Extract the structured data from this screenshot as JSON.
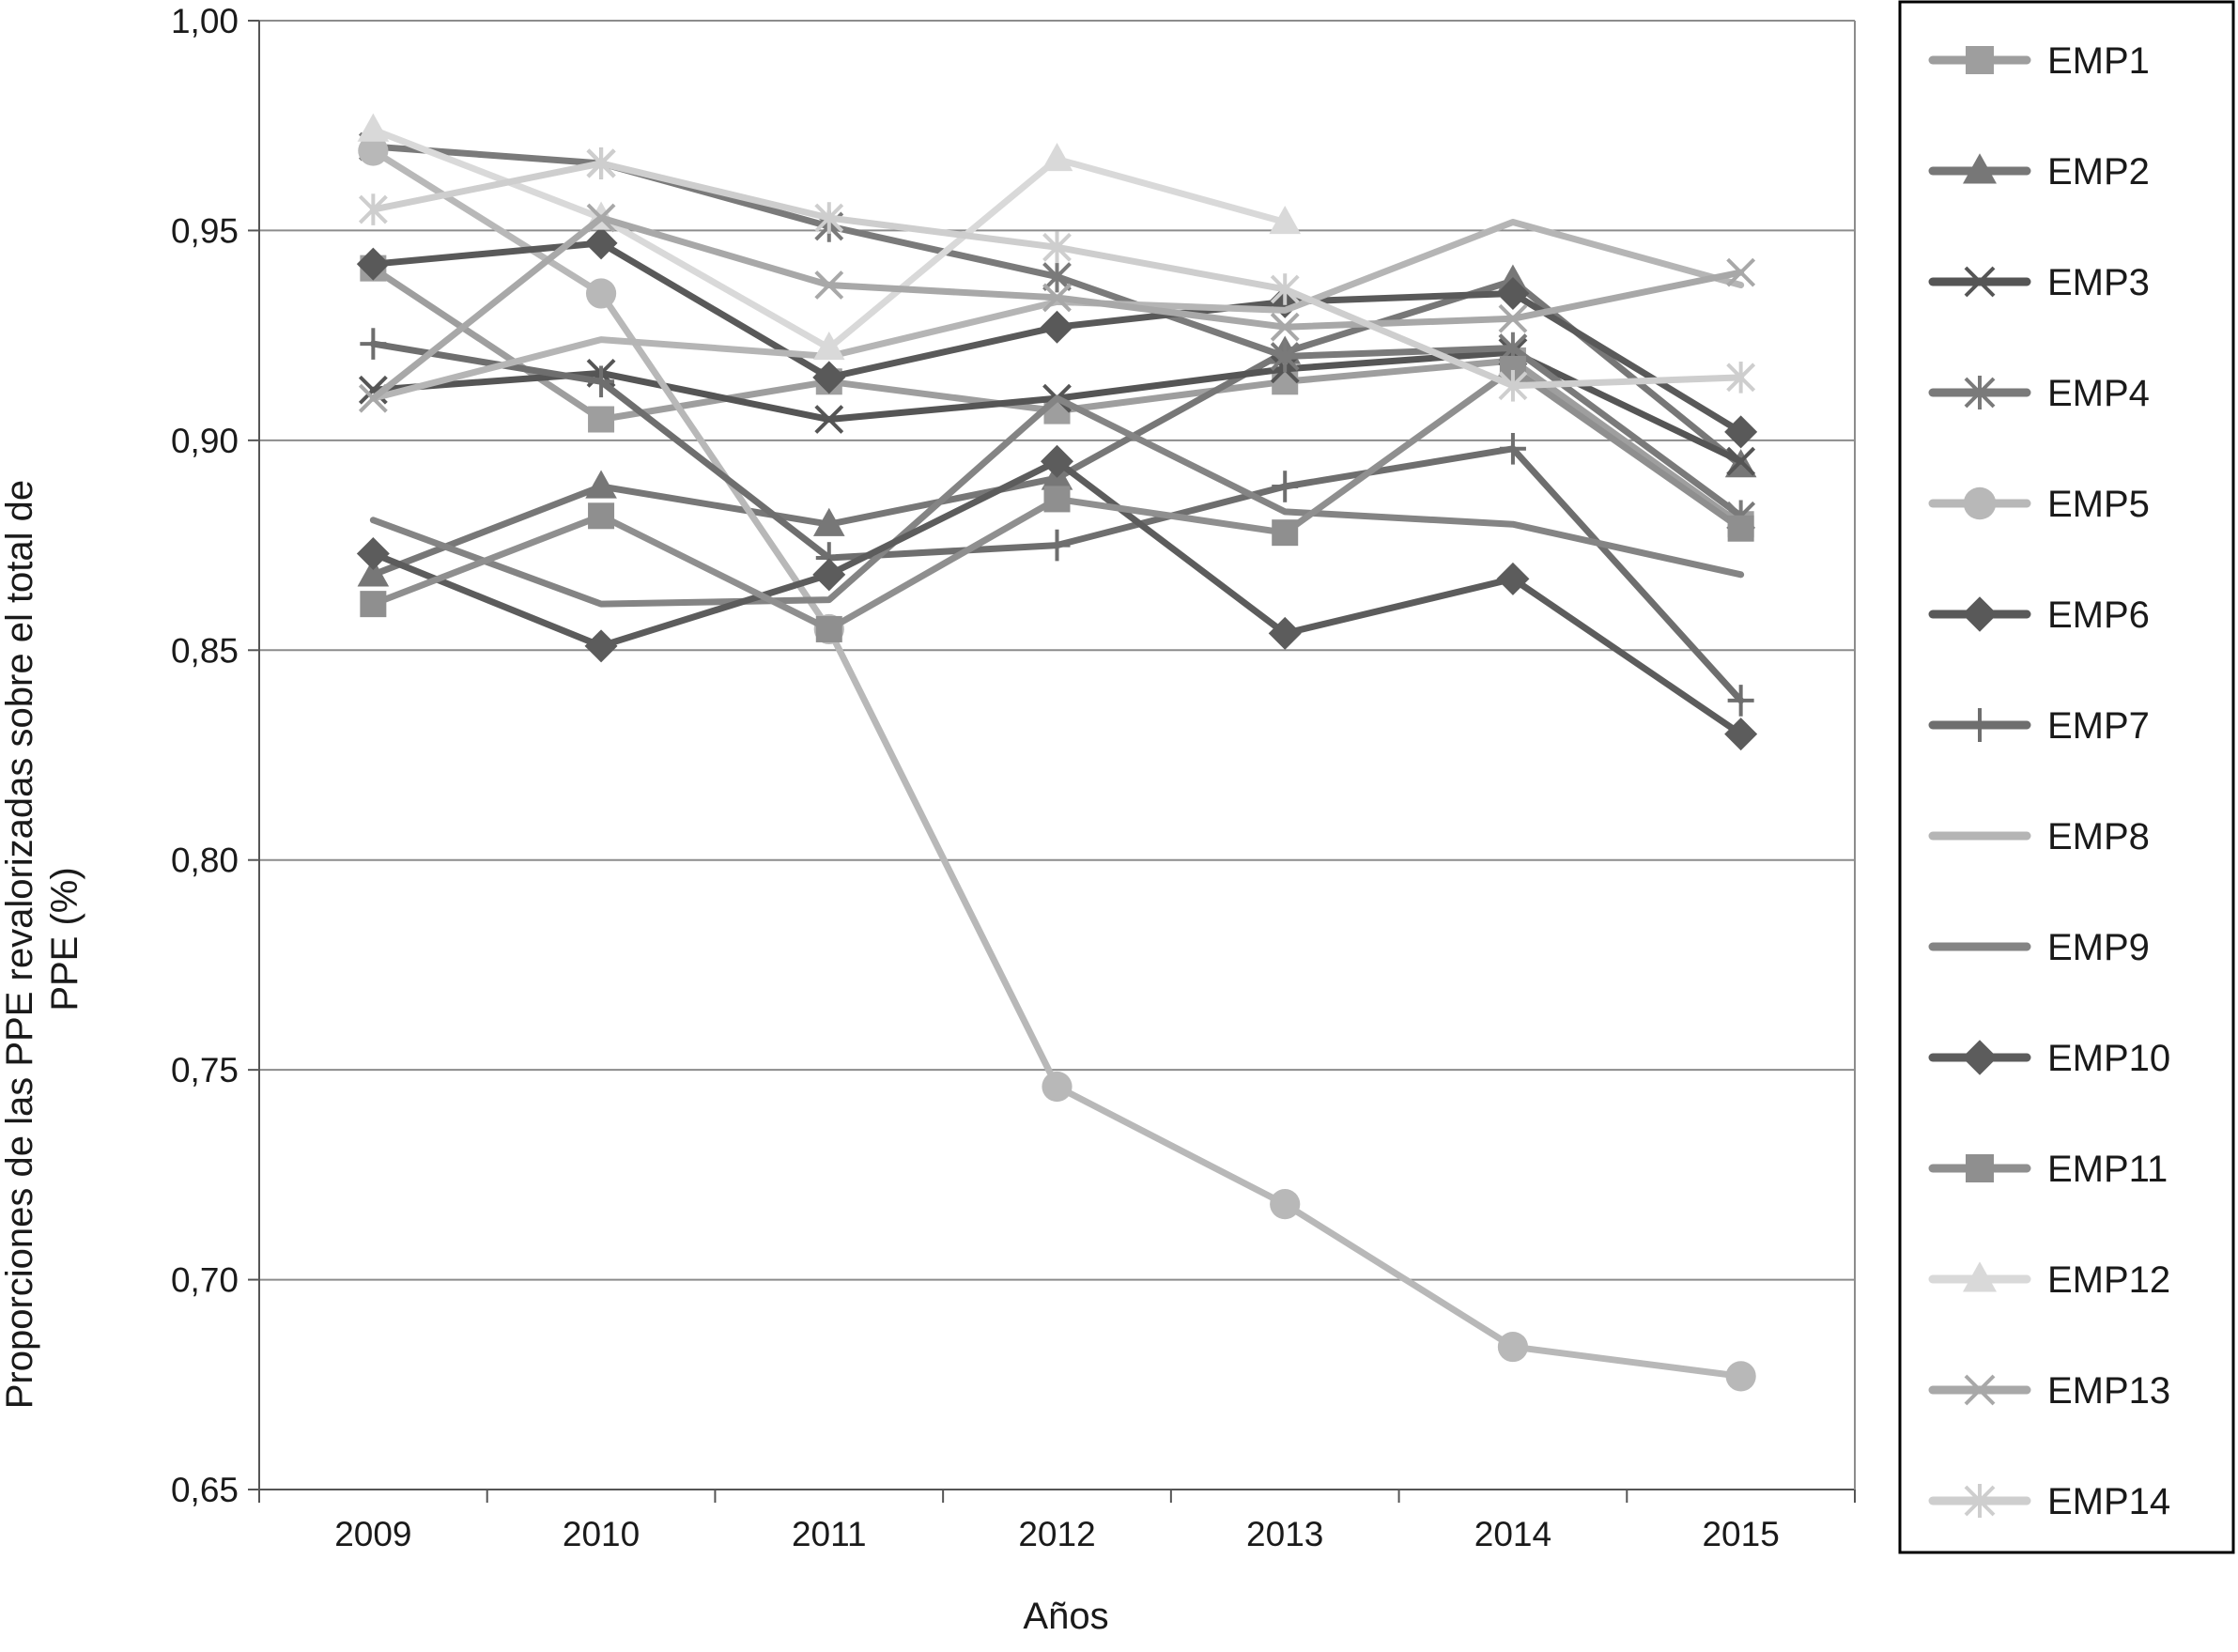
{
  "chart_data": {
    "type": "line",
    "xlabel": "Años",
    "ylabel_line1": "Proporciones de las PPE revalorizadas sobre el total de",
    "ylabel_line2": "PPE (%)",
    "categories": [
      "2009",
      "2010",
      "2011",
      "2012",
      "2013",
      "2014",
      "2015"
    ],
    "ylim": [
      0.65,
      1.0
    ],
    "yticks": [
      1.0,
      0.95,
      0.9,
      0.85,
      0.8,
      0.75,
      0.7,
      0.65
    ],
    "ytick_labels": [
      "1,00",
      "0,95",
      "0,90",
      "0,85",
      "0,80",
      "0,75",
      "0,70",
      "0,65"
    ],
    "grid": "horizontal",
    "legend_position": "right",
    "series": [
      {
        "name": "EMP1",
        "marker": "square",
        "color": "#9e9e9e",
        "values": [
          0.941,
          0.905,
          0.914,
          0.907,
          0.914,
          0.919,
          0.88
        ]
      },
      {
        "name": "EMP2",
        "marker": "triangle",
        "color": "#777777",
        "values": [
          0.868,
          0.889,
          0.88,
          0.891,
          0.921,
          0.938,
          0.894
        ]
      },
      {
        "name": "EMP3",
        "marker": "x",
        "color": "#555555",
        "values": [
          0.912,
          0.916,
          0.905,
          0.91,
          0.917,
          0.921,
          0.895
        ]
      },
      {
        "name": "EMP4",
        "marker": "star",
        "color": "#7a7a7a",
        "values": [
          0.97,
          0.966,
          0.951,
          0.939,
          0.92,
          0.922,
          0.882
        ]
      },
      {
        "name": "EMP5",
        "marker": "circle",
        "color": "#b8b8b8",
        "values": [
          0.969,
          0.935,
          0.855,
          0.746,
          0.718,
          0.684,
          0.677
        ]
      },
      {
        "name": "EMP6",
        "marker": "diamond",
        "color": "#595959",
        "values": [
          0.942,
          0.947,
          0.915,
          0.927,
          0.933,
          0.935,
          0.902
        ]
      },
      {
        "name": "EMP7",
        "marker": "plus",
        "color": "#6e6e6e",
        "values": [
          0.923,
          0.914,
          0.872,
          0.875,
          0.889,
          0.898,
          0.838
        ]
      },
      {
        "name": "EMP8",
        "marker": "none",
        "color": "#b5b5b5",
        "values": [
          0.91,
          0.924,
          0.92,
          0.933,
          0.931,
          0.952,
          0.937
        ]
      },
      {
        "name": "EMP9",
        "marker": "none",
        "color": "#848484",
        "values": [
          0.881,
          0.861,
          0.862,
          0.91,
          0.883,
          0.88,
          0.868
        ]
      },
      {
        "name": "EMP10",
        "marker": "diamond",
        "color": "#5c5c5c",
        "values": [
          0.873,
          0.851,
          0.868,
          0.895,
          0.854,
          0.867,
          0.83
        ]
      },
      {
        "name": "EMP11",
        "marker": "square",
        "color": "#8f8f8f",
        "values": [
          0.861,
          0.882,
          0.855,
          0.886,
          0.878,
          0.917,
          0.879
        ]
      },
      {
        "name": "EMP12",
        "marker": "triangle",
        "color": "#d9d9d9",
        "values": [
          0.974,
          0.953,
          0.922,
          0.967,
          0.952,
          null,
          null
        ]
      },
      {
        "name": "EMP13",
        "marker": "x",
        "color": "#a8a8a8",
        "values": [
          0.91,
          0.953,
          0.937,
          0.934,
          0.927,
          0.929,
          0.94
        ]
      },
      {
        "name": "EMP14",
        "marker": "star",
        "color": "#cecece",
        "values": [
          0.955,
          0.966,
          0.953,
          0.946,
          0.936,
          0.913,
          0.915
        ]
      }
    ]
  }
}
